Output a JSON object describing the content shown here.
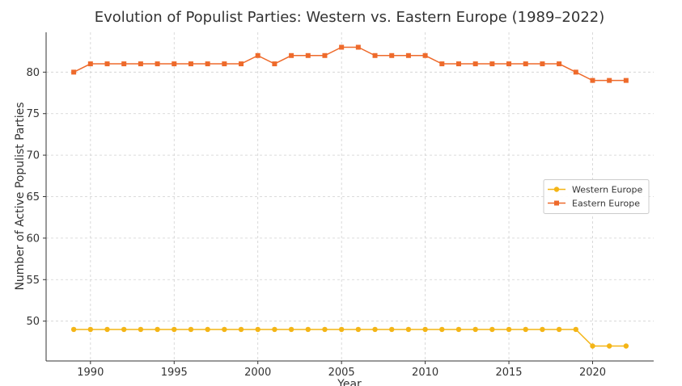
{
  "chart_data": {
    "type": "line",
    "title": "Evolution of Populist Parties: Western vs. Eastern Europe (1989–2022)",
    "xlabel": "Year",
    "ylabel": "Number of Active Populist Parties",
    "x": [
      1989,
      1990,
      1991,
      1992,
      1993,
      1994,
      1995,
      1996,
      1997,
      1998,
      1999,
      2000,
      2001,
      2002,
      2003,
      2004,
      2005,
      2006,
      2007,
      2008,
      2009,
      2010,
      2011,
      2012,
      2013,
      2014,
      2015,
      2016,
      2017,
      2018,
      2019,
      2020,
      2021,
      2022
    ],
    "series": [
      {
        "name": "Western Europe",
        "color": "#f4b516",
        "marker": "circle",
        "values": [
          49,
          49,
          49,
          49,
          49,
          49,
          49,
          49,
          49,
          49,
          49,
          49,
          49,
          49,
          49,
          49,
          49,
          49,
          49,
          49,
          49,
          49,
          49,
          49,
          49,
          49,
          49,
          49,
          49,
          49,
          49,
          47,
          47,
          47
        ]
      },
      {
        "name": "Eastern Europe",
        "color": "#ee6a2b",
        "marker": "square",
        "values": [
          80,
          81,
          81,
          81,
          81,
          81,
          81,
          81,
          81,
          81,
          81,
          82,
          81,
          82,
          82,
          82,
          83,
          83,
          82,
          82,
          82,
          82,
          81,
          81,
          81,
          81,
          81,
          81,
          81,
          81,
          80,
          79,
          79,
          79
        ]
      }
    ],
    "xlim": [
      1987.35,
      2023.65
    ],
    "xticks": [
      1990,
      1995,
      2000,
      2005,
      2010,
      2015,
      2020
    ],
    "ylim": [
      45.2,
      84.8
    ],
    "yticks": [
      50,
      55,
      60,
      65,
      70,
      75,
      80
    ],
    "grid": true,
    "legend": "center right"
  }
}
